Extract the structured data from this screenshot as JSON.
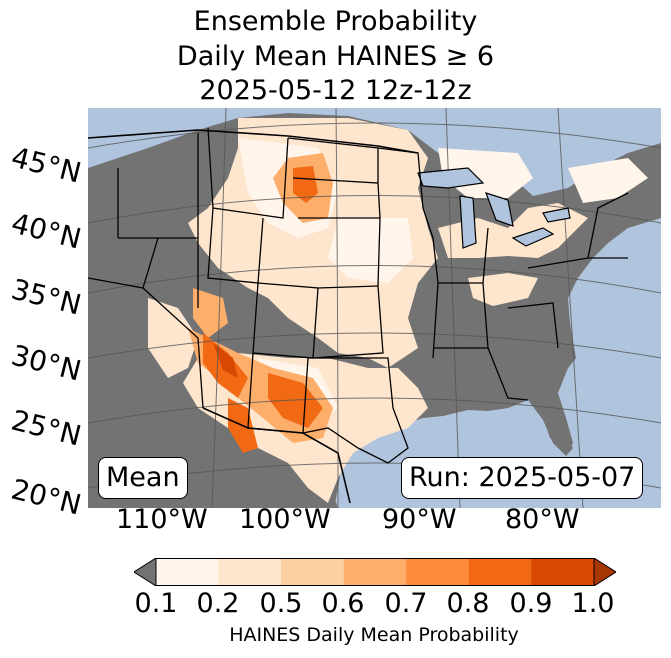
{
  "title": {
    "line1": "Ensemble Probability",
    "line2": "Daily Mean HAINES ≥ 6",
    "line3": "2025-05-12 12z-12z"
  },
  "map": {
    "projection": "Lambert conformal, CONUS",
    "lat_labels": [
      "45°N",
      "40°N",
      "35°N",
      "30°N",
      "25°N",
      "20°N"
    ],
    "lon_labels": [
      "110°W",
      "100°W",
      "90°W",
      "80°W"
    ],
    "colors": {
      "ocean": "#b0c4de",
      "below_min": "#737373",
      "land_borders": "#000000",
      "graticule": "#555555"
    }
  },
  "annotations": {
    "left_box": "Mean",
    "right_box": "Run: 2025-05-07"
  },
  "colorbar": {
    "label": "HAINES Daily Mean Probability",
    "ticks": [
      "0.1",
      "0.2",
      "0.5",
      "0.6",
      "0.7",
      "0.8",
      "0.9",
      "1.0"
    ],
    "under_color": "#737373",
    "colors": [
      "#fff5eb",
      "#fee6ce",
      "#fdd0a2",
      "#fdae6b",
      "#fd8d3c",
      "#f16913",
      "#d94801",
      "#a63603"
    ],
    "extend": "both"
  }
}
